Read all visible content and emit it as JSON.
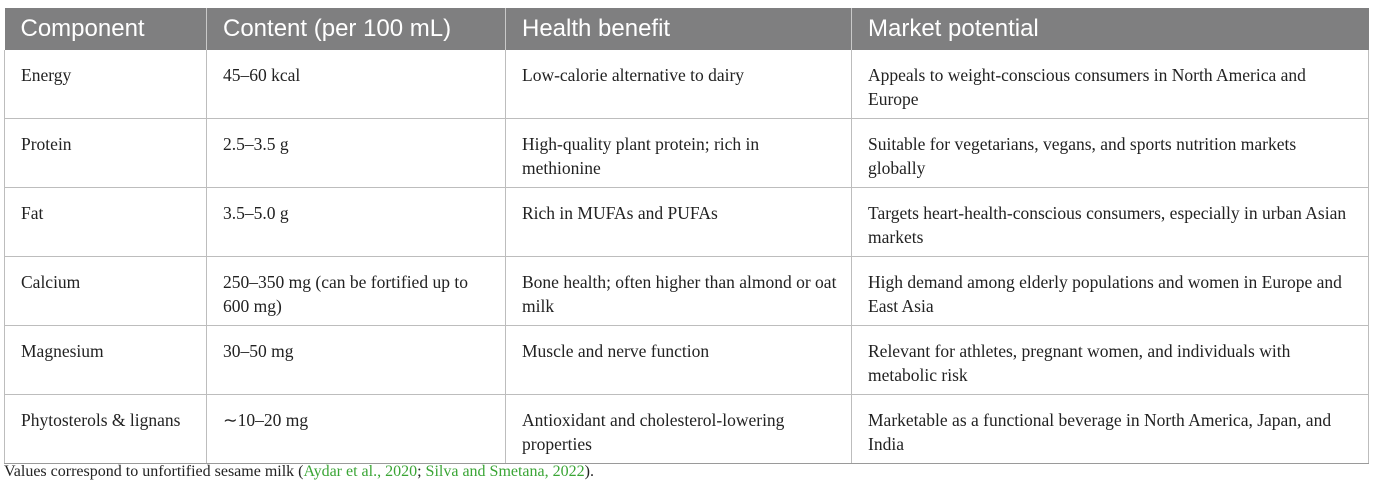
{
  "table": {
    "headers": [
      "Component",
      "Content (per 100 mL)",
      "Health benefit",
      "Market potential"
    ],
    "rows": [
      [
        "Energy",
        "45–60 kcal",
        "Low-calorie alternative to dairy",
        "Appeals to weight-conscious consumers in North America and Europe"
      ],
      [
        "Protein",
        "2.5–3.5 g",
        "High-quality plant protein; rich in methionine",
        "Suitable for vegetarians, vegans, and sports nutrition markets globally"
      ],
      [
        "Fat",
        "3.5–5.0 g",
        "Rich in MUFAs and PUFAs",
        "Targets heart-health-conscious consumers, especially in urban Asian markets"
      ],
      [
        "Calcium",
        "250–350 mg (can be fortified up to 600 mg)",
        "Bone health; often higher than almond or oat milk",
        "High demand among elderly populations and women in Europe and East Asia"
      ],
      [
        "Magnesium",
        "30–50 mg",
        "Muscle and nerve function",
        "Relevant for athletes, pregnant women, and individuals with metabolic risk"
      ],
      [
        "Phytosterols & lignans",
        "∼10–20 mg",
        "Antioxidant and cholesterol-lowering properties",
        "Marketable as a functional beverage in North America, Japan, and India"
      ]
    ]
  },
  "footnote": {
    "prefix": "Values correspond to unfortified sesame milk (",
    "ref1": "Aydar et al., 2020",
    "sep": "; ",
    "ref2": "Silva and Smetana, 2022",
    "suffix": ")."
  },
  "colors": {
    "header_bg": "#7f7f80",
    "header_text": "#ffffff",
    "reference_link": "#3aa535"
  }
}
